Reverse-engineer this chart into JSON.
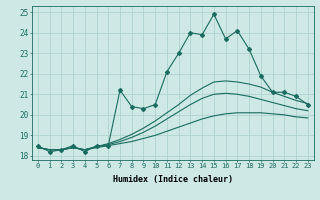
{
  "xlabel": "Humidex (Indice chaleur)",
  "ylabel": "",
  "xlim": [
    -0.5,
    23.5
  ],
  "ylim": [
    17.8,
    25.3
  ],
  "xticks": [
    0,
    1,
    2,
    3,
    4,
    5,
    6,
    7,
    8,
    9,
    10,
    11,
    12,
    13,
    14,
    15,
    16,
    17,
    18,
    19,
    20,
    21,
    22,
    23
  ],
  "yticks": [
    18,
    19,
    20,
    21,
    22,
    23,
    24,
    25
  ],
  "bg_color": "#cde8e5",
  "grid_color": "#aacfcc",
  "line_color": "#1a6b60",
  "main_line": [
    18.5,
    18.2,
    18.3,
    18.5,
    18.2,
    18.5,
    18.5,
    21.2,
    20.4,
    20.3,
    20.5,
    22.1,
    23.0,
    24.0,
    23.9,
    24.9,
    23.7,
    24.1,
    23.2,
    21.9,
    21.1,
    21.1,
    20.9,
    20.5
  ],
  "smooth_line1": [
    18.4,
    18.3,
    18.3,
    18.4,
    18.3,
    18.4,
    18.5,
    18.6,
    18.7,
    18.85,
    19.0,
    19.2,
    19.4,
    19.6,
    19.8,
    19.95,
    20.05,
    20.1,
    20.1,
    20.1,
    20.05,
    20.0,
    19.9,
    19.85
  ],
  "smooth_line2": [
    18.4,
    18.3,
    18.3,
    18.4,
    18.3,
    18.45,
    18.55,
    18.7,
    18.9,
    19.15,
    19.45,
    19.8,
    20.15,
    20.5,
    20.8,
    21.0,
    21.05,
    21.0,
    20.9,
    20.75,
    20.6,
    20.45,
    20.3,
    20.2
  ],
  "smooth_line3": [
    18.4,
    18.3,
    18.3,
    18.4,
    18.3,
    18.45,
    18.6,
    18.8,
    19.05,
    19.35,
    19.7,
    20.1,
    20.5,
    20.95,
    21.3,
    21.6,
    21.65,
    21.6,
    21.5,
    21.35,
    21.1,
    20.9,
    20.7,
    20.55
  ]
}
